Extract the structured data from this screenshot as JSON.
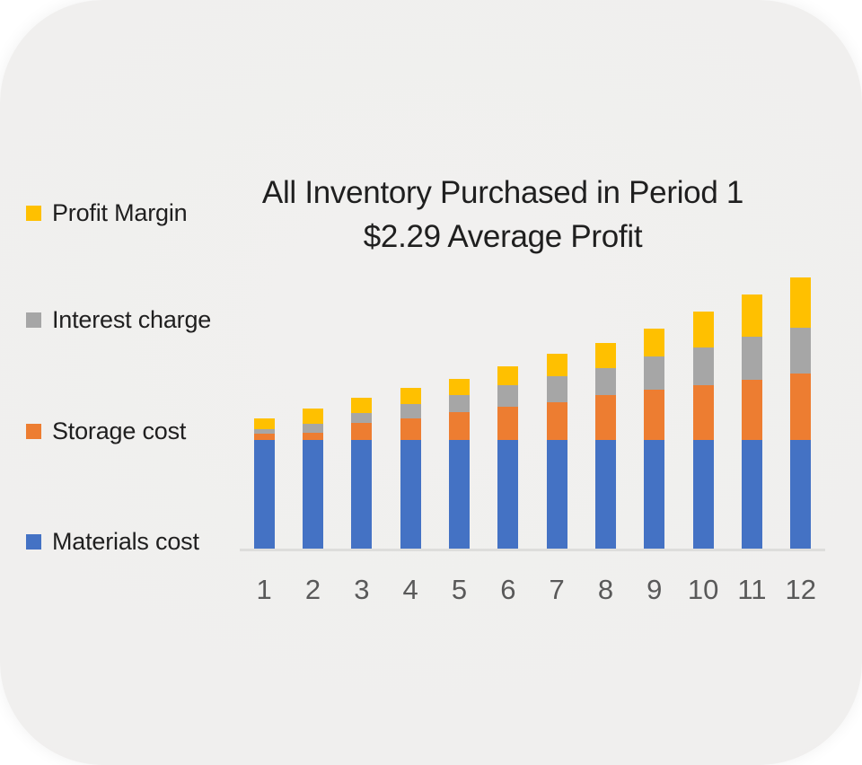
{
  "card": {
    "background_color": "#F0EFEE",
    "page_background": "#FFFFFF"
  },
  "title": {
    "line1": "All Inventory Purchased in Period 1",
    "line2": "$2.29 Average Profit",
    "text_color": "#1F1F1F"
  },
  "legend": {
    "position": "left",
    "items": [
      {
        "label": "Profit Margin",
        "color": "#FFC000"
      },
      {
        "label": "Interest charge",
        "color": "#A6A6A6"
      },
      {
        "label": "Storage cost",
        "color": "#ED7D31"
      },
      {
        "label": "Materials cost",
        "color": "#4472C4"
      }
    ]
  },
  "x_axis": {
    "labels": [
      "1",
      "2",
      "3",
      "4",
      "5",
      "6",
      "7",
      "8",
      "9",
      "10",
      "11",
      "12"
    ],
    "label_color": "#595959",
    "axis_line_color": "#DDDDDB"
  },
  "chart_data": {
    "type": "bar",
    "stacked": true,
    "title": "All Inventory Purchased in Period 1",
    "subtitle": "$2.29 Average Profit",
    "average_profit": 2.29,
    "categories": [
      1,
      2,
      3,
      4,
      5,
      6,
      7,
      8,
      9,
      10,
      11,
      12
    ],
    "xlabel": "",
    "ylabel": "",
    "ylim": [
      0,
      25
    ],
    "value_axis_visible": false,
    "gridlines": false,
    "legend_position": "left",
    "series": [
      {
        "name": "Materials cost",
        "color": "#4472C4",
        "values": [
          10.0,
          10.0,
          10.0,
          10.0,
          10.0,
          10.0,
          10.0,
          10.0,
          10.0,
          10.0,
          10.0,
          10.0
        ]
      },
      {
        "name": "Storage cost",
        "color": "#ED7D31",
        "values": [
          0.6,
          0.7,
          1.55,
          2.0,
          2.55,
          3.05,
          3.45,
          4.1,
          4.6,
          5.05,
          5.55,
          6.1
        ]
      },
      {
        "name": "Interest charge",
        "color": "#A6A6A6",
        "values": [
          0.4,
          0.75,
          0.95,
          1.3,
          1.55,
          2.0,
          2.4,
          2.55,
          3.05,
          3.45,
          3.95,
          4.2
        ]
      },
      {
        "name": "Profit Margin",
        "color": "#FFC000",
        "values": [
          1.0,
          1.45,
          1.35,
          1.5,
          1.55,
          1.75,
          2.05,
          2.3,
          2.6,
          3.3,
          3.9,
          4.65
        ]
      }
    ]
  }
}
